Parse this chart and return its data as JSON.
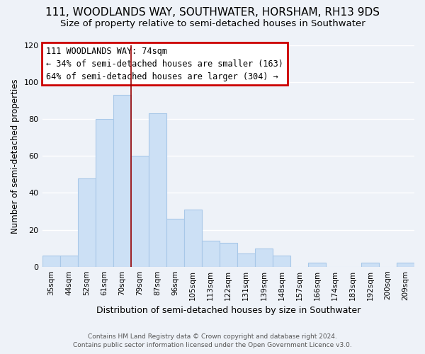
{
  "title": "111, WOODLANDS WAY, SOUTHWATER, HORSHAM, RH13 9DS",
  "subtitle": "Size of property relative to semi-detached houses in Southwater",
  "xlabel": "Distribution of semi-detached houses by size in Southwater",
  "ylabel": "Number of semi-detached properties",
  "footer_line1": "Contains HM Land Registry data © Crown copyright and database right 2024.",
  "footer_line2": "Contains public sector information licensed under the Open Government Licence v3.0.",
  "categories": [
    "35sqm",
    "44sqm",
    "52sqm",
    "61sqm",
    "70sqm",
    "79sqm",
    "87sqm",
    "96sqm",
    "105sqm",
    "113sqm",
    "122sqm",
    "131sqm",
    "139sqm",
    "148sqm",
    "157sqm",
    "166sqm",
    "174sqm",
    "183sqm",
    "192sqm",
    "200sqm",
    "209sqm"
  ],
  "values": [
    6,
    6,
    48,
    80,
    93,
    60,
    83,
    26,
    31,
    14,
    13,
    7,
    10,
    6,
    0,
    2,
    0,
    0,
    2,
    0,
    2
  ],
  "bar_color": "#cce0f5",
  "bar_edge_color": "#a8c8e8",
  "highlight_line_color": "#990000",
  "annotation_box_text_line1": "111 WOODLANDS WAY: 74sqm",
  "annotation_box_text_line2": "← 34% of semi-detached houses are smaller (163)",
  "annotation_box_text_line3": "64% of semi-detached houses are larger (304) →",
  "annotation_box_color": "#ffffff",
  "annotation_box_edge_color": "#cc0000",
  "ylim": [
    0,
    120
  ],
  "yticks": [
    0,
    20,
    40,
    60,
    80,
    100,
    120
  ],
  "background_color": "#eef2f8",
  "plot_bg_color": "#eef2f8",
  "grid_color": "#ffffff",
  "title_fontsize": 11,
  "subtitle_fontsize": 9.5
}
